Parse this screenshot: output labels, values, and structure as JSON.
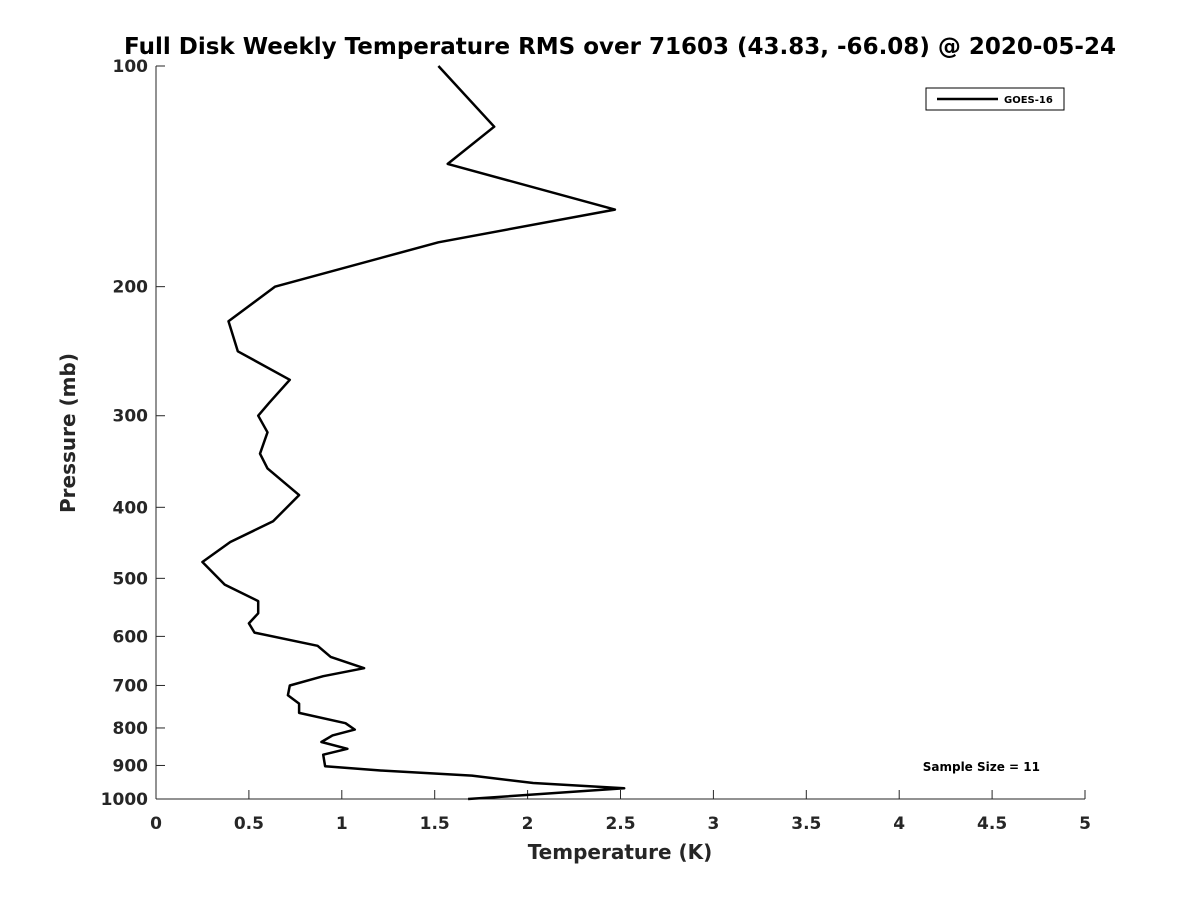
{
  "chart_data": {
    "type": "line",
    "title": "Full Disk Weekly Temperature RMS over 71603 (43.83, -66.08) @ 2020-05-24",
    "xlabel": "Temperature (K)",
    "ylabel": "Pressure (mb)",
    "xlim": [
      0,
      5
    ],
    "ylim": [
      100,
      1000
    ],
    "y_scale": "log",
    "y_reversed": true,
    "x_ticks": [
      "0",
      "0.5",
      "1",
      "1.5",
      "2",
      "2.5",
      "3",
      "3.5",
      "4",
      "4.5",
      "5"
    ],
    "y_ticks": [
      "100",
      "200",
      "300",
      "400",
      "500",
      "600",
      "700",
      "800",
      "900",
      "1000"
    ],
    "grid": false,
    "legend_position": "top-right",
    "annotation": "Sample Size = 11",
    "series": [
      {
        "name": "GOES-16",
        "color": "#000000",
        "x": [
          1.52,
          1.82,
          1.57,
          2.47,
          1.52,
          0.64,
          0.39,
          0.44,
          0.72,
          0.61,
          0.55,
          0.6,
          0.56,
          0.6,
          0.77,
          0.63,
          0.4,
          0.25,
          0.37,
          0.55,
          0.55,
          0.5,
          0.53,
          0.87,
          0.94,
          1.12,
          0.9,
          0.72,
          0.71,
          0.77,
          0.77,
          1.02,
          1.07,
          0.95,
          0.89,
          1.03,
          0.9,
          0.91,
          1.2,
          1.7,
          2.03,
          2.52,
          1.68
        ],
        "y": [
          100,
          121,
          136,
          157,
          174,
          200,
          223,
          245,
          268,
          288,
          300,
          316,
          338,
          354,
          385,
          418,
          446,
          475,
          510,
          537,
          558,
          576,
          593,
          618,
          640,
          663,
          680,
          700,
          722,
          741,
          763,
          788,
          804,
          819,
          836,
          854,
          870,
          902,
          914,
          929,
          951,
          967,
          1000
        ]
      }
    ]
  }
}
